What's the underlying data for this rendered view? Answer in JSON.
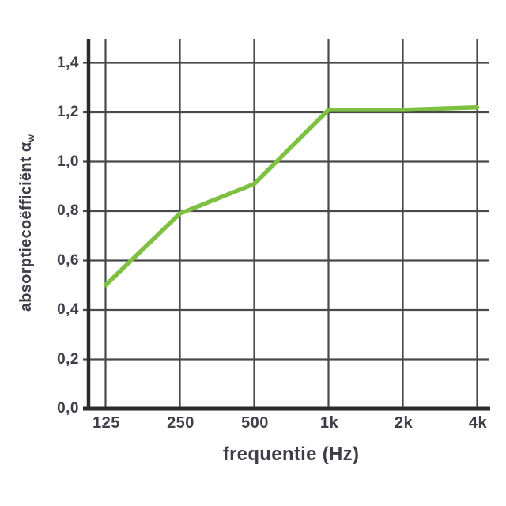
{
  "chart_data": {
    "type": "line",
    "categories": [
      "125",
      "250",
      "500",
      "1k",
      "2k",
      "4k"
    ],
    "series": [
      {
        "name": "absorptiecoëfficiënt αw",
        "values": [
          0.5,
          0.79,
          0.91,
          1.21,
          1.21,
          1.22
        ]
      }
    ],
    "xlabel": "frequentie (Hz)",
    "ylabel": "absorptiecoëfficiënt",
    "ylabel_symbol": "α",
    "ylabel_symbol_subscript": "w",
    "y_tick_labels": [
      "0,0",
      "0,2",
      "0,4",
      "0,6",
      "0,8",
      "1,0",
      "1,2",
      "1,4"
    ],
    "y_tick_values": [
      0,
      0.2,
      0.4,
      0.6,
      0.8,
      1.0,
      1.2,
      1.4
    ],
    "ylim": [
      0,
      1.4
    ],
    "x_axis_scale": "octave-bands",
    "grid": true,
    "legend": "none",
    "colors": {
      "line": "#7ec142",
      "grid": "#494949",
      "axis": "#2b2b2b",
      "text": "#3d3e48",
      "background": "#ffffff"
    }
  }
}
